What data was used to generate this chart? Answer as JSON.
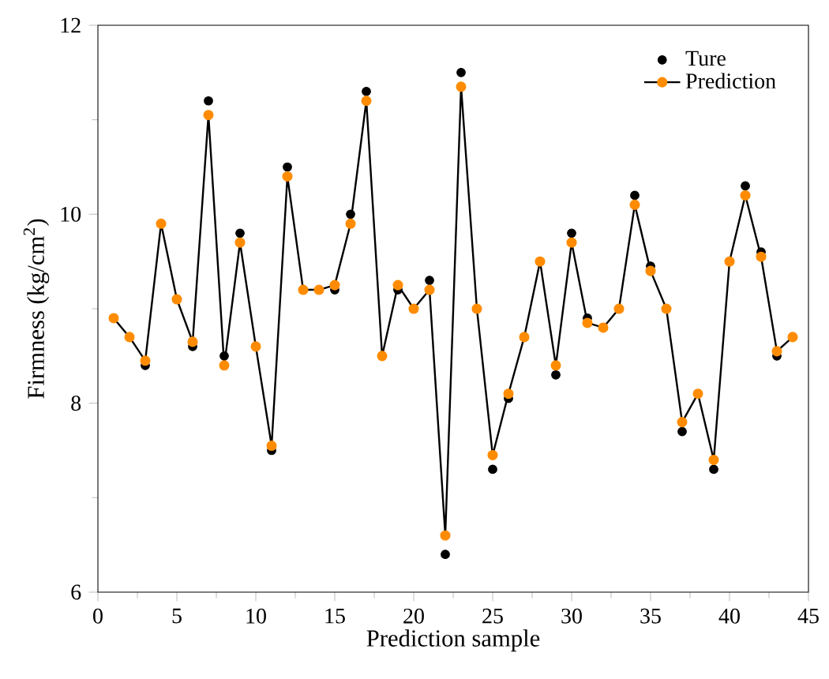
{
  "chart_data": {
    "type": "line",
    "xlabel": "Prediction sample",
    "ylabel": "Firmness (kg/cm$^{2}$)",
    "x": [
      1,
      2,
      3,
      4,
      5,
      6,
      7,
      8,
      9,
      10,
      11,
      12,
      13,
      14,
      15,
      16,
      17,
      18,
      19,
      20,
      21,
      22,
      23,
      24,
      25,
      26,
      27,
      28,
      29,
      30,
      31,
      32,
      33,
      34,
      35,
      36,
      37,
      38,
      39,
      40,
      41,
      42,
      43,
      44
    ],
    "series": [
      {
        "name": "Ture",
        "type": "scatter",
        "color": "#000000",
        "values": [
          null,
          null,
          8.4,
          null,
          null,
          8.6,
          11.2,
          8.5,
          9.8,
          null,
          7.5,
          10.5,
          null,
          null,
          9.2,
          10.0,
          11.3,
          null,
          9.2,
          null,
          9.3,
          6.4,
          11.5,
          null,
          7.3,
          8.05,
          null,
          null,
          8.3,
          9.8,
          8.9,
          null,
          null,
          10.2,
          9.45,
          null,
          7.7,
          null,
          7.3,
          null,
          10.3,
          9.6,
          8.5,
          null
        ]
      },
      {
        "name": "Prediction",
        "color": "#ff8c00",
        "values": [
          8.9,
          8.7,
          8.45,
          9.9,
          9.1,
          8.65,
          11.05,
          8.4,
          9.7,
          8.6,
          7.55,
          10.4,
          9.2,
          9.2,
          9.25,
          9.9,
          11.2,
          8.5,
          9.25,
          9.0,
          9.2,
          6.6,
          11.35,
          9.0,
          7.45,
          8.1,
          8.7,
          9.5,
          8.4,
          9.7,
          8.85,
          8.8,
          9.0,
          10.1,
          9.4,
          9.0,
          7.8,
          8.1,
          7.4,
          9.5,
          10.2,
          9.55,
          8.55,
          8.7
        ]
      }
    ],
    "xlim": [
      0,
      45
    ],
    "xticks": [
      0,
      5,
      10,
      15,
      20,
      25,
      30,
      35,
      40,
      45
    ],
    "ylim": [
      6,
      12
    ],
    "yticks": [
      6,
      8,
      10,
      12
    ],
    "legend": "top right",
    "marker": "circle",
    "line_style": "solid",
    "grid": false
  }
}
